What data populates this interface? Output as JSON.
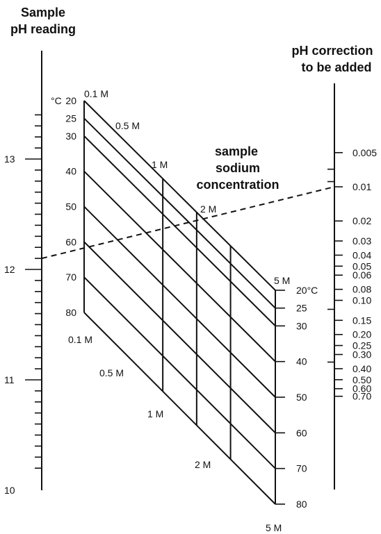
{
  "left_scale": {
    "title_line1": "Sample",
    "title_line2": "pH reading",
    "labels": [
      "13",
      "12",
      "11",
      "10"
    ],
    "values": [
      13,
      12,
      11,
      10
    ]
  },
  "right_scale": {
    "title_line1": "pH correction",
    "title_line2": "to be added",
    "labels": [
      "0.005",
      "0.01",
      "0.02",
      "0.03",
      "0.04",
      "0.05",
      "0.06",
      "0.08",
      "0.10",
      "0.15",
      "0.20",
      "0.25",
      "0.30",
      "0.40",
      "0.50",
      "0.60",
      "0.70"
    ],
    "values": [
      0.005,
      0.01,
      0.02,
      0.03,
      0.04,
      0.05,
      0.06,
      0.08,
      0.1,
      0.15,
      0.2,
      0.25,
      0.3,
      0.4,
      0.5,
      0.6,
      0.7
    ]
  },
  "grid": {
    "title_line1": "sample",
    "title_line2": "sodium",
    "title_line3": "concentration",
    "temp_unit_left": "°C",
    "temp_labels_left": [
      "20",
      "25",
      "30",
      "40",
      "50",
      "60",
      "70",
      "80"
    ],
    "temp_labels_right": [
      "20°C",
      "25",
      "30",
      "40",
      "50",
      "60",
      "70",
      "80"
    ],
    "temperatures": [
      20,
      25,
      30,
      40,
      50,
      60,
      70,
      80
    ],
    "concentration_labels": [
      "0.1 M",
      "0.5 M",
      "1 M",
      "2 M",
      "5 M"
    ],
    "concentrations": [
      0.1,
      0.5,
      1,
      2,
      5
    ]
  },
  "example_line": {
    "ph_reading": 12.1,
    "correction": 0.01
  }
}
